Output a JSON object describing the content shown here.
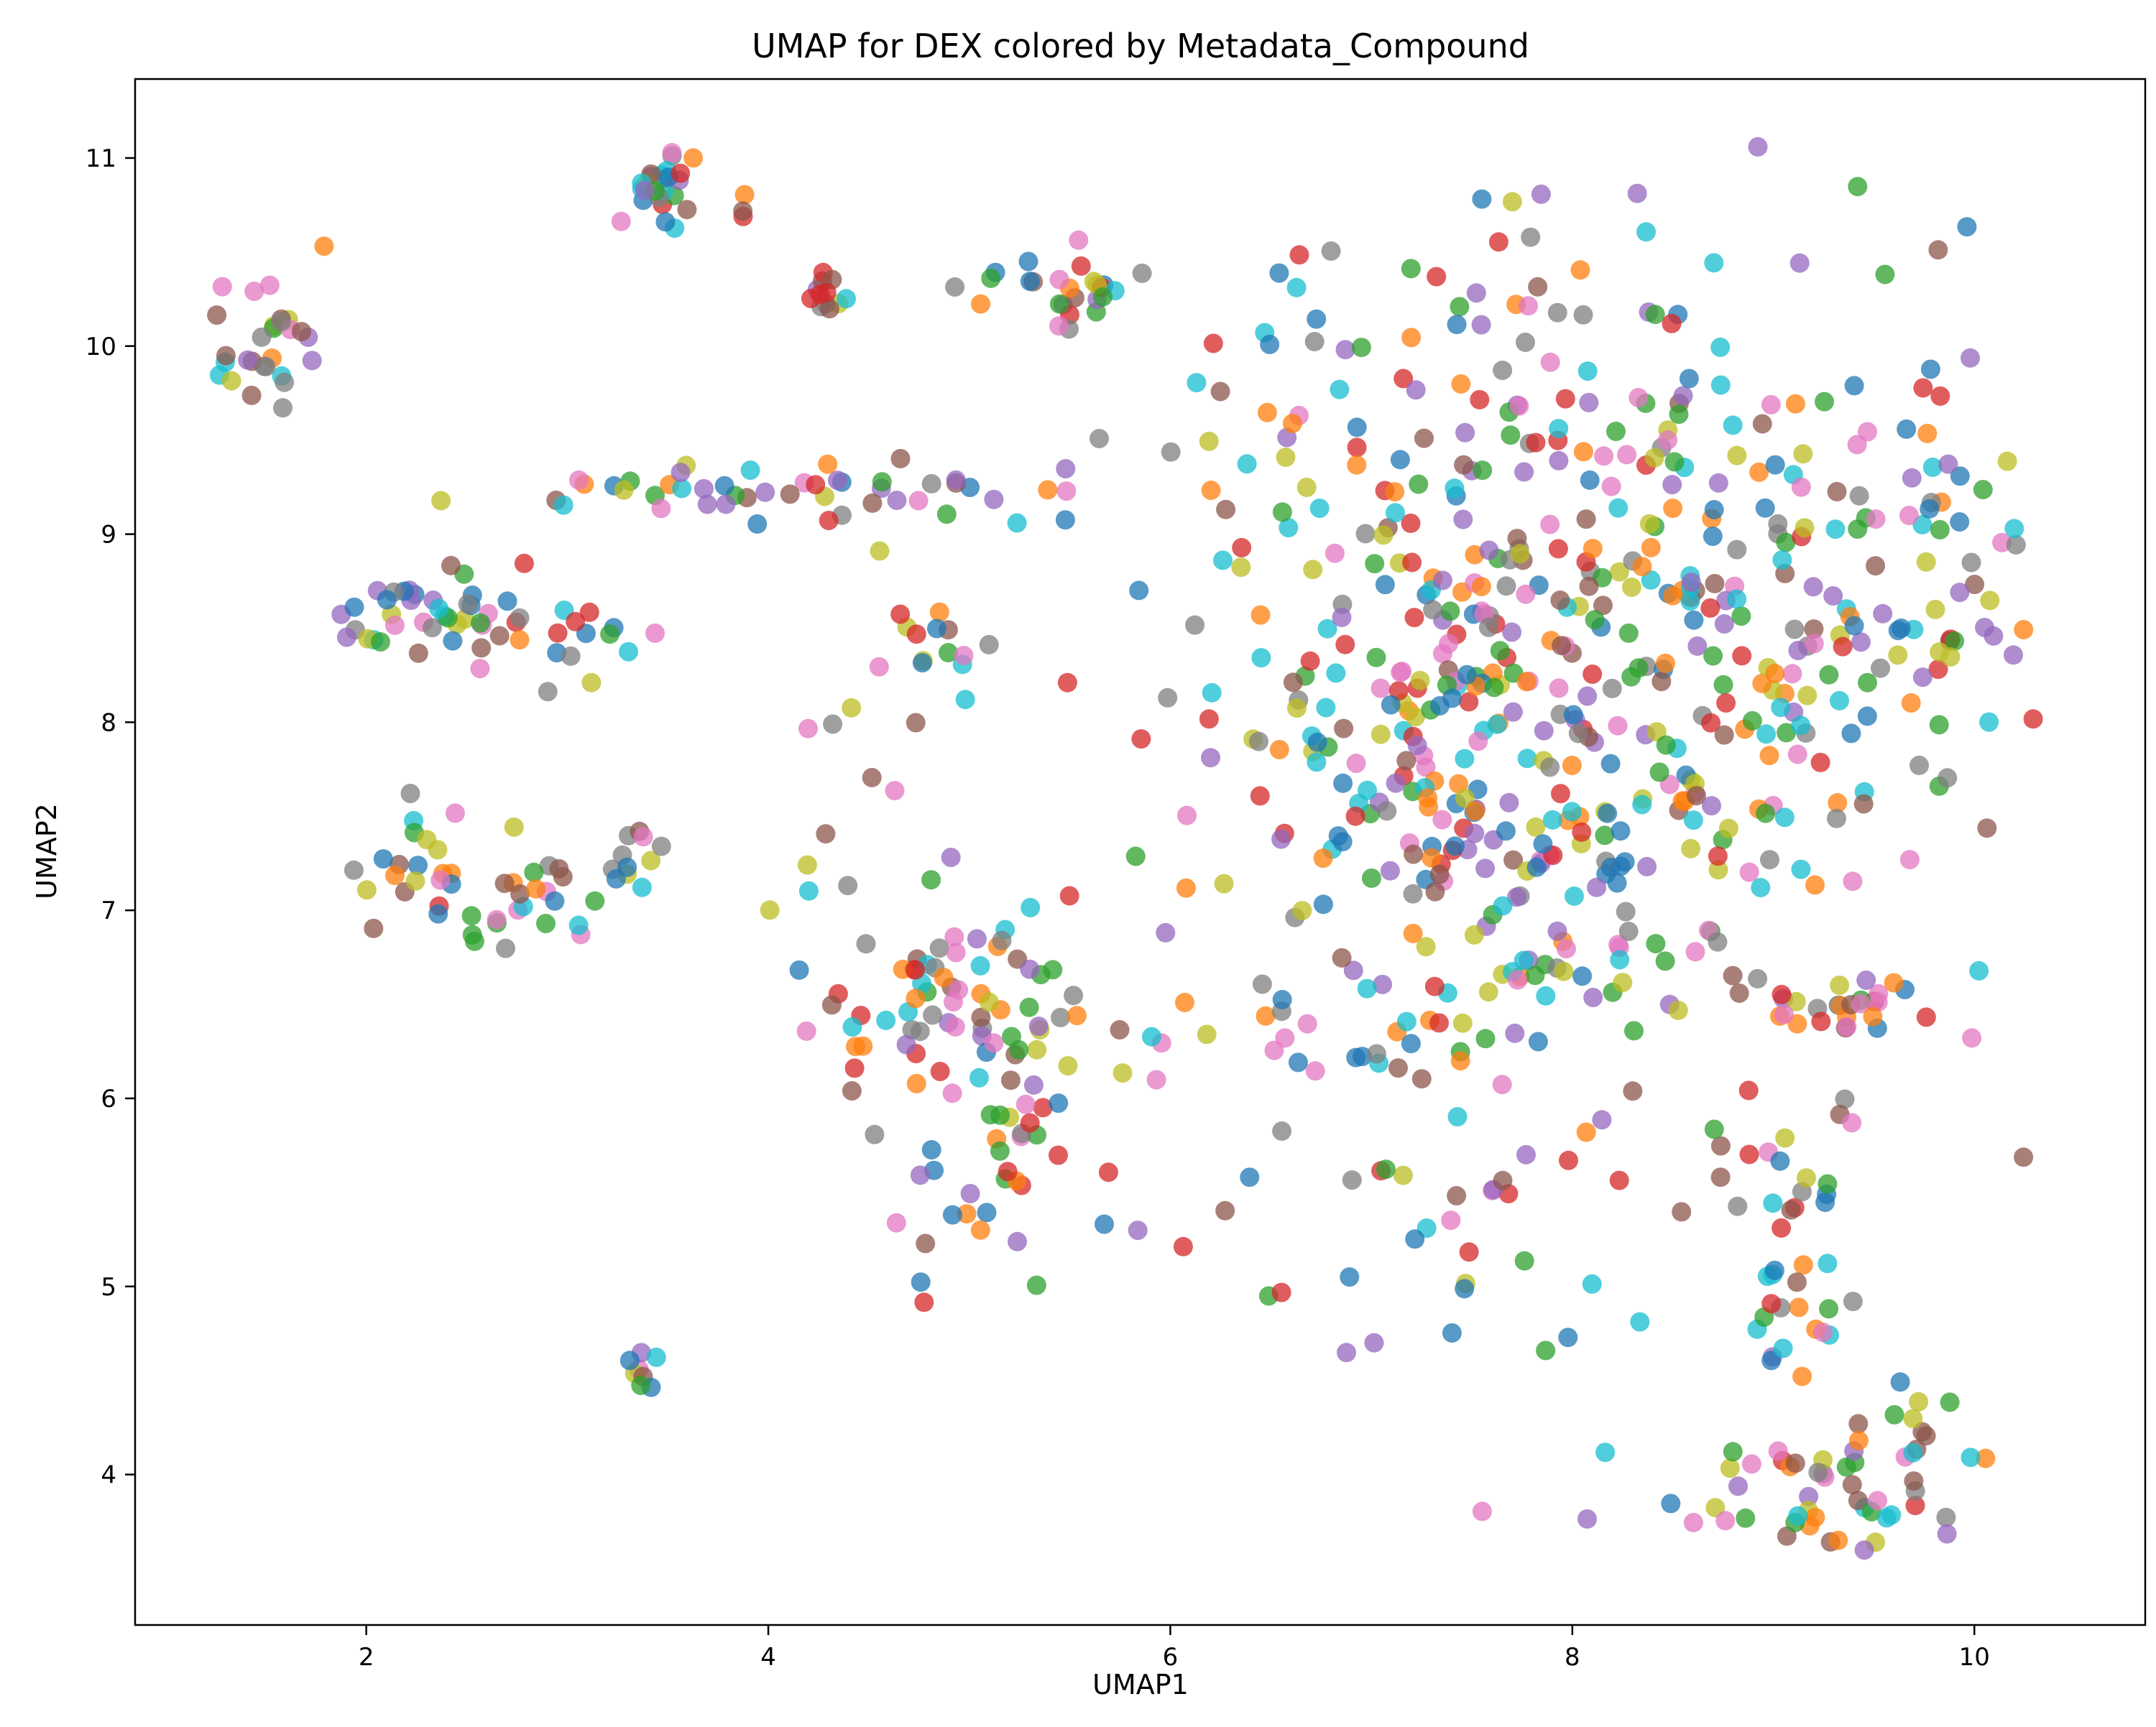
{
  "chart_data": {
    "type": "scatter",
    "title": "UMAP for DEX colored by Metadata_Compound",
    "xlabel": "UMAP1",
    "ylabel": "UMAP2",
    "xlim": [
      0.85,
      10.85
    ],
    "ylim": [
      3.2,
      11.42
    ],
    "xticks": [
      2,
      4,
      6,
      8,
      10
    ],
    "yticks": [
      4,
      5,
      6,
      7,
      8,
      9,
      10,
      11
    ],
    "grid": false,
    "legend": "none",
    "marker_alpha": 0.75,
    "palette": [
      "#1f77b4",
      "#ff7f0e",
      "#2ca02c",
      "#d62728",
      "#9467bd",
      "#8c564b",
      "#e377c2",
      "#7f7f7f",
      "#bcbd22",
      "#17becf"
    ],
    "clusters": [
      {
        "cx": 1.45,
        "cy": 10.0,
        "sx": 0.14,
        "sy": 0.22,
        "n": 30
      },
      {
        "cx": 3.45,
        "cy": 10.9,
        "sx": 0.12,
        "sy": 0.08,
        "n": 20
      },
      {
        "cx": 3.7,
        "cy": 10.7,
        "sx": 0.2,
        "sy": 0.1,
        "n": 8
      },
      {
        "cx": 4.3,
        "cy": 10.25,
        "sx": 0.07,
        "sy": 0.06,
        "n": 12
      },
      {
        "cx": 5.4,
        "cy": 10.35,
        "sx": 0.22,
        "sy": 0.1,
        "n": 25
      },
      {
        "cx": 3.6,
        "cy": 9.25,
        "sx": 0.45,
        "sy": 0.06,
        "n": 25
      },
      {
        "cx": 4.8,
        "cy": 9.2,
        "sx": 0.5,
        "sy": 0.12,
        "n": 25
      },
      {
        "cx": 2.25,
        "cy": 8.55,
        "sx": 0.22,
        "sy": 0.12,
        "n": 30
      },
      {
        "cx": 2.75,
        "cy": 8.5,
        "sx": 0.3,
        "sy": 0.15,
        "n": 25
      },
      {
        "cx": 2.2,
        "cy": 7.4,
        "sx": 0.08,
        "sy": 0.2,
        "n": 12
      },
      {
        "cx": 2.7,
        "cy": 7.05,
        "sx": 0.35,
        "sy": 0.15,
        "n": 35
      },
      {
        "cx": 3.3,
        "cy": 7.3,
        "sx": 0.1,
        "sy": 0.08,
        "n": 8
      },
      {
        "cx": 3.35,
        "cy": 4.52,
        "sx": 0.05,
        "sy": 0.05,
        "n": 8
      },
      {
        "cx": 4.75,
        "cy": 8.35,
        "sx": 0.25,
        "sy": 0.2,
        "n": 15
      },
      {
        "cx": 4.4,
        "cy": 7.2,
        "sx": 0.3,
        "sy": 0.6,
        "n": 12
      },
      {
        "cx": 4.9,
        "cy": 6.5,
        "sx": 0.35,
        "sy": 0.35,
        "n": 70
      },
      {
        "cx": 5.1,
        "cy": 5.5,
        "sx": 0.25,
        "sy": 0.3,
        "n": 30
      },
      {
        "cx": 5.7,
        "cy": 6.1,
        "sx": 0.2,
        "sy": 0.2,
        "n": 8
      },
      {
        "cx": 7.6,
        "cy": 8.0,
        "sx": 0.85,
        "sy": 1.35,
        "n": 520
      },
      {
        "cx": 8.6,
        "cy": 8.5,
        "sx": 0.55,
        "sy": 1.1,
        "n": 120
      },
      {
        "cx": 9.7,
        "cy": 8.9,
        "sx": 0.4,
        "sy": 0.65,
        "n": 70
      },
      {
        "cx": 9.4,
        "cy": 6.5,
        "sx": 0.25,
        "sy": 0.12,
        "n": 25
      },
      {
        "cx": 9.1,
        "cy": 5.3,
        "sx": 0.2,
        "sy": 0.5,
        "n": 40
      },
      {
        "cx": 9.3,
        "cy": 3.9,
        "sx": 0.35,
        "sy": 0.15,
        "n": 45
      },
      {
        "cx": 9.65,
        "cy": 4.25,
        "sx": 0.12,
        "sy": 0.2,
        "n": 10
      }
    ]
  }
}
